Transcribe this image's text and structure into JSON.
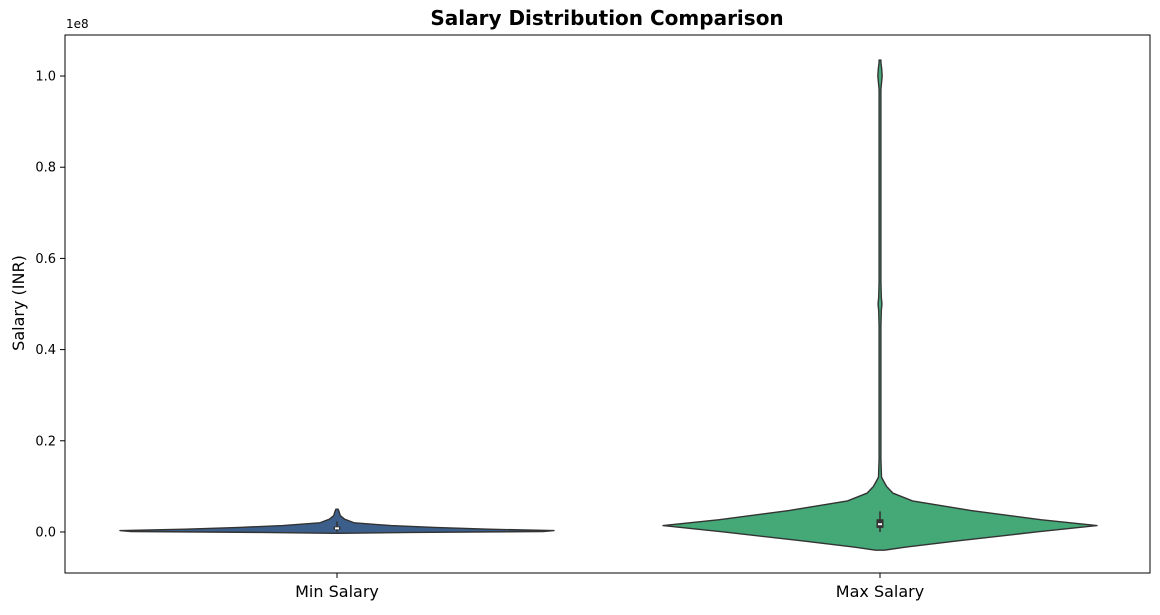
{
  "chart_data": {
    "type": "violin",
    "title": "Salary Distribution Comparison",
    "xlabel": "",
    "ylabel": "Salary (INR)",
    "offset_label": "1e8",
    "ylim": [
      -9000000,
      109000000
    ],
    "yticks": [
      0,
      20000000,
      40000000,
      60000000,
      80000000,
      100000000
    ],
    "ytick_labels": [
      "0.0",
      "0.2",
      "0.4",
      "0.6",
      "0.8",
      "1.0"
    ],
    "categories": [
      "Min Salary",
      "Max Salary"
    ],
    "colors": [
      "#3b5f8a",
      "#44a877"
    ],
    "series": [
      {
        "name": "Min Salary",
        "color": "#3b5f8a",
        "range": [
          -300000,
          5000000
        ],
        "quartiles": [
          500000,
          800000,
          1200000
        ],
        "whisker": [
          0,
          2300000
        ],
        "profile": [
          [
            -300000,
            0.01
          ],
          [
            -100000,
            0.35
          ],
          [
            100000,
            0.95
          ],
          [
            300000,
            1.0
          ],
          [
            600000,
            0.7
          ],
          [
            1000000,
            0.45
          ],
          [
            1400000,
            0.25
          ],
          [
            2000000,
            0.08
          ],
          [
            2800000,
            0.035
          ],
          [
            3600000,
            0.015
          ],
          [
            4400000,
            0.01
          ],
          [
            5000000,
            0.005
          ]
        ]
      },
      {
        "name": "Max Salary",
        "color": "#44a877",
        "range": [
          -4000000,
          103500000
        ],
        "quartiles": [
          900000,
          1700000,
          2800000
        ],
        "whisker": [
          0,
          4500000
        ],
        "profile": [
          [
            -4000000,
            0.02
          ],
          [
            -3300000,
            0.12
          ],
          [
            -2000000,
            0.35
          ],
          [
            0,
            0.72
          ],
          [
            1400000,
            1.0
          ],
          [
            2700000,
            0.74
          ],
          [
            4700000,
            0.42
          ],
          [
            5800000,
            0.28
          ],
          [
            6800000,
            0.15
          ],
          [
            8500000,
            0.06
          ],
          [
            10000000,
            0.03
          ],
          [
            12000000,
            0.007
          ],
          [
            16000000,
            0.004
          ],
          [
            30000000,
            0.004
          ],
          [
            45000000,
            0.004
          ],
          [
            48500000,
            0.006
          ],
          [
            50000000,
            0.009
          ],
          [
            51500000,
            0.006
          ],
          [
            55000000,
            0.004
          ],
          [
            80000000,
            0.004
          ],
          [
            97000000,
            0.004
          ],
          [
            98500000,
            0.007
          ],
          [
            100000000,
            0.01
          ],
          [
            101500000,
            0.008
          ],
          [
            103000000,
            0.004
          ],
          [
            103500000,
            0.001
          ]
        ]
      }
    ]
  }
}
